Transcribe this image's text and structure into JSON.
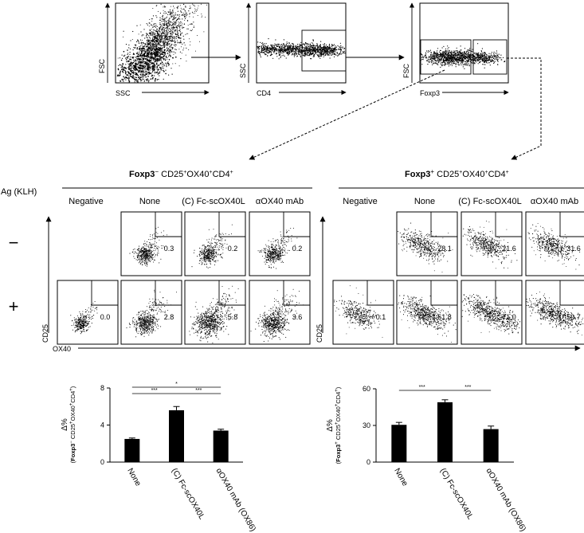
{
  "gating": {
    "plots": [
      {
        "xlabel": "SSC",
        "ylabel": "FSC"
      },
      {
        "xlabel": "CD4",
        "ylabel": "SSC"
      },
      {
        "xlabel": "Foxp3",
        "ylabel": "FSC"
      }
    ]
  },
  "section_titles": {
    "neg_main": "Foxp3",
    "neg_sup": "−",
    "neg_rest": " CD25",
    "pos_main": "Foxp3",
    "pos_sup": "+",
    "pos_rest": " CD25",
    "tail_a": "OX40",
    "tail_b": "CD4"
  },
  "row_header": "Ag  (KLH)",
  "row_labels": {
    "minus": "−",
    "plus": "+"
  },
  "column_headers": [
    "Negative",
    "None",
    "(C) Fc-scOX40L",
    "αOX40 mAb"
  ],
  "axis_labels": {
    "y": "CD25",
    "x": "OX40"
  },
  "flow_values": {
    "foxp3_neg": {
      "minus": [
        "",
        "0.3",
        "0.2",
        "0.2"
      ],
      "plus": [
        "0.0",
        "2.8",
        "5.8",
        "3.6"
      ]
    },
    "foxp3_pos": {
      "minus": [
        "",
        "28.1",
        "21.6",
        "31.6"
      ],
      "plus": [
        "0.1",
        "61.8",
        "71.0",
        "59.7"
      ]
    }
  },
  "chart_data": [
    {
      "type": "bar",
      "categories": [
        "None",
        "(C) Fc-scOX40L",
        "αOX40 mAb (OX86)"
      ],
      "values": [
        2.5,
        5.6,
        3.4
      ],
      "errors": [
        0.1,
        0.4,
        0.15
      ],
      "ylim": [
        0,
        8
      ],
      "yticks": [
        "0",
        "4",
        "8"
      ],
      "ylabel_delta": "Δ%",
      "ylabel_main": "Foxp3",
      "ylabel_sup": "−",
      "ylabel_rest": " CD25",
      "significance": [
        {
          "from": 0,
          "to": 1,
          "label": "***"
        },
        {
          "from": 1,
          "to": 2,
          "label": "***"
        },
        {
          "from": 0,
          "to": 2,
          "label": "*"
        }
      ]
    },
    {
      "type": "bar",
      "categories": [
        "None",
        "(C) Fc-scOX40L",
        "αOX40 mAb (OX86)"
      ],
      "values": [
        30.5,
        49.0,
        27.0
      ],
      "errors": [
        2.0,
        2.0,
        2.5
      ],
      "ylim": [
        0,
        60
      ],
      "yticks": [
        "0",
        "30",
        "60"
      ],
      "ylabel_delta": "Δ%",
      "ylabel_main": "Foxp3",
      "ylabel_sup": "+",
      "ylabel_rest": " CD25",
      "significance": [
        {
          "from": 0,
          "to": 1,
          "label": "***"
        },
        {
          "from": 1,
          "to": 2,
          "label": "***"
        }
      ]
    }
  ]
}
